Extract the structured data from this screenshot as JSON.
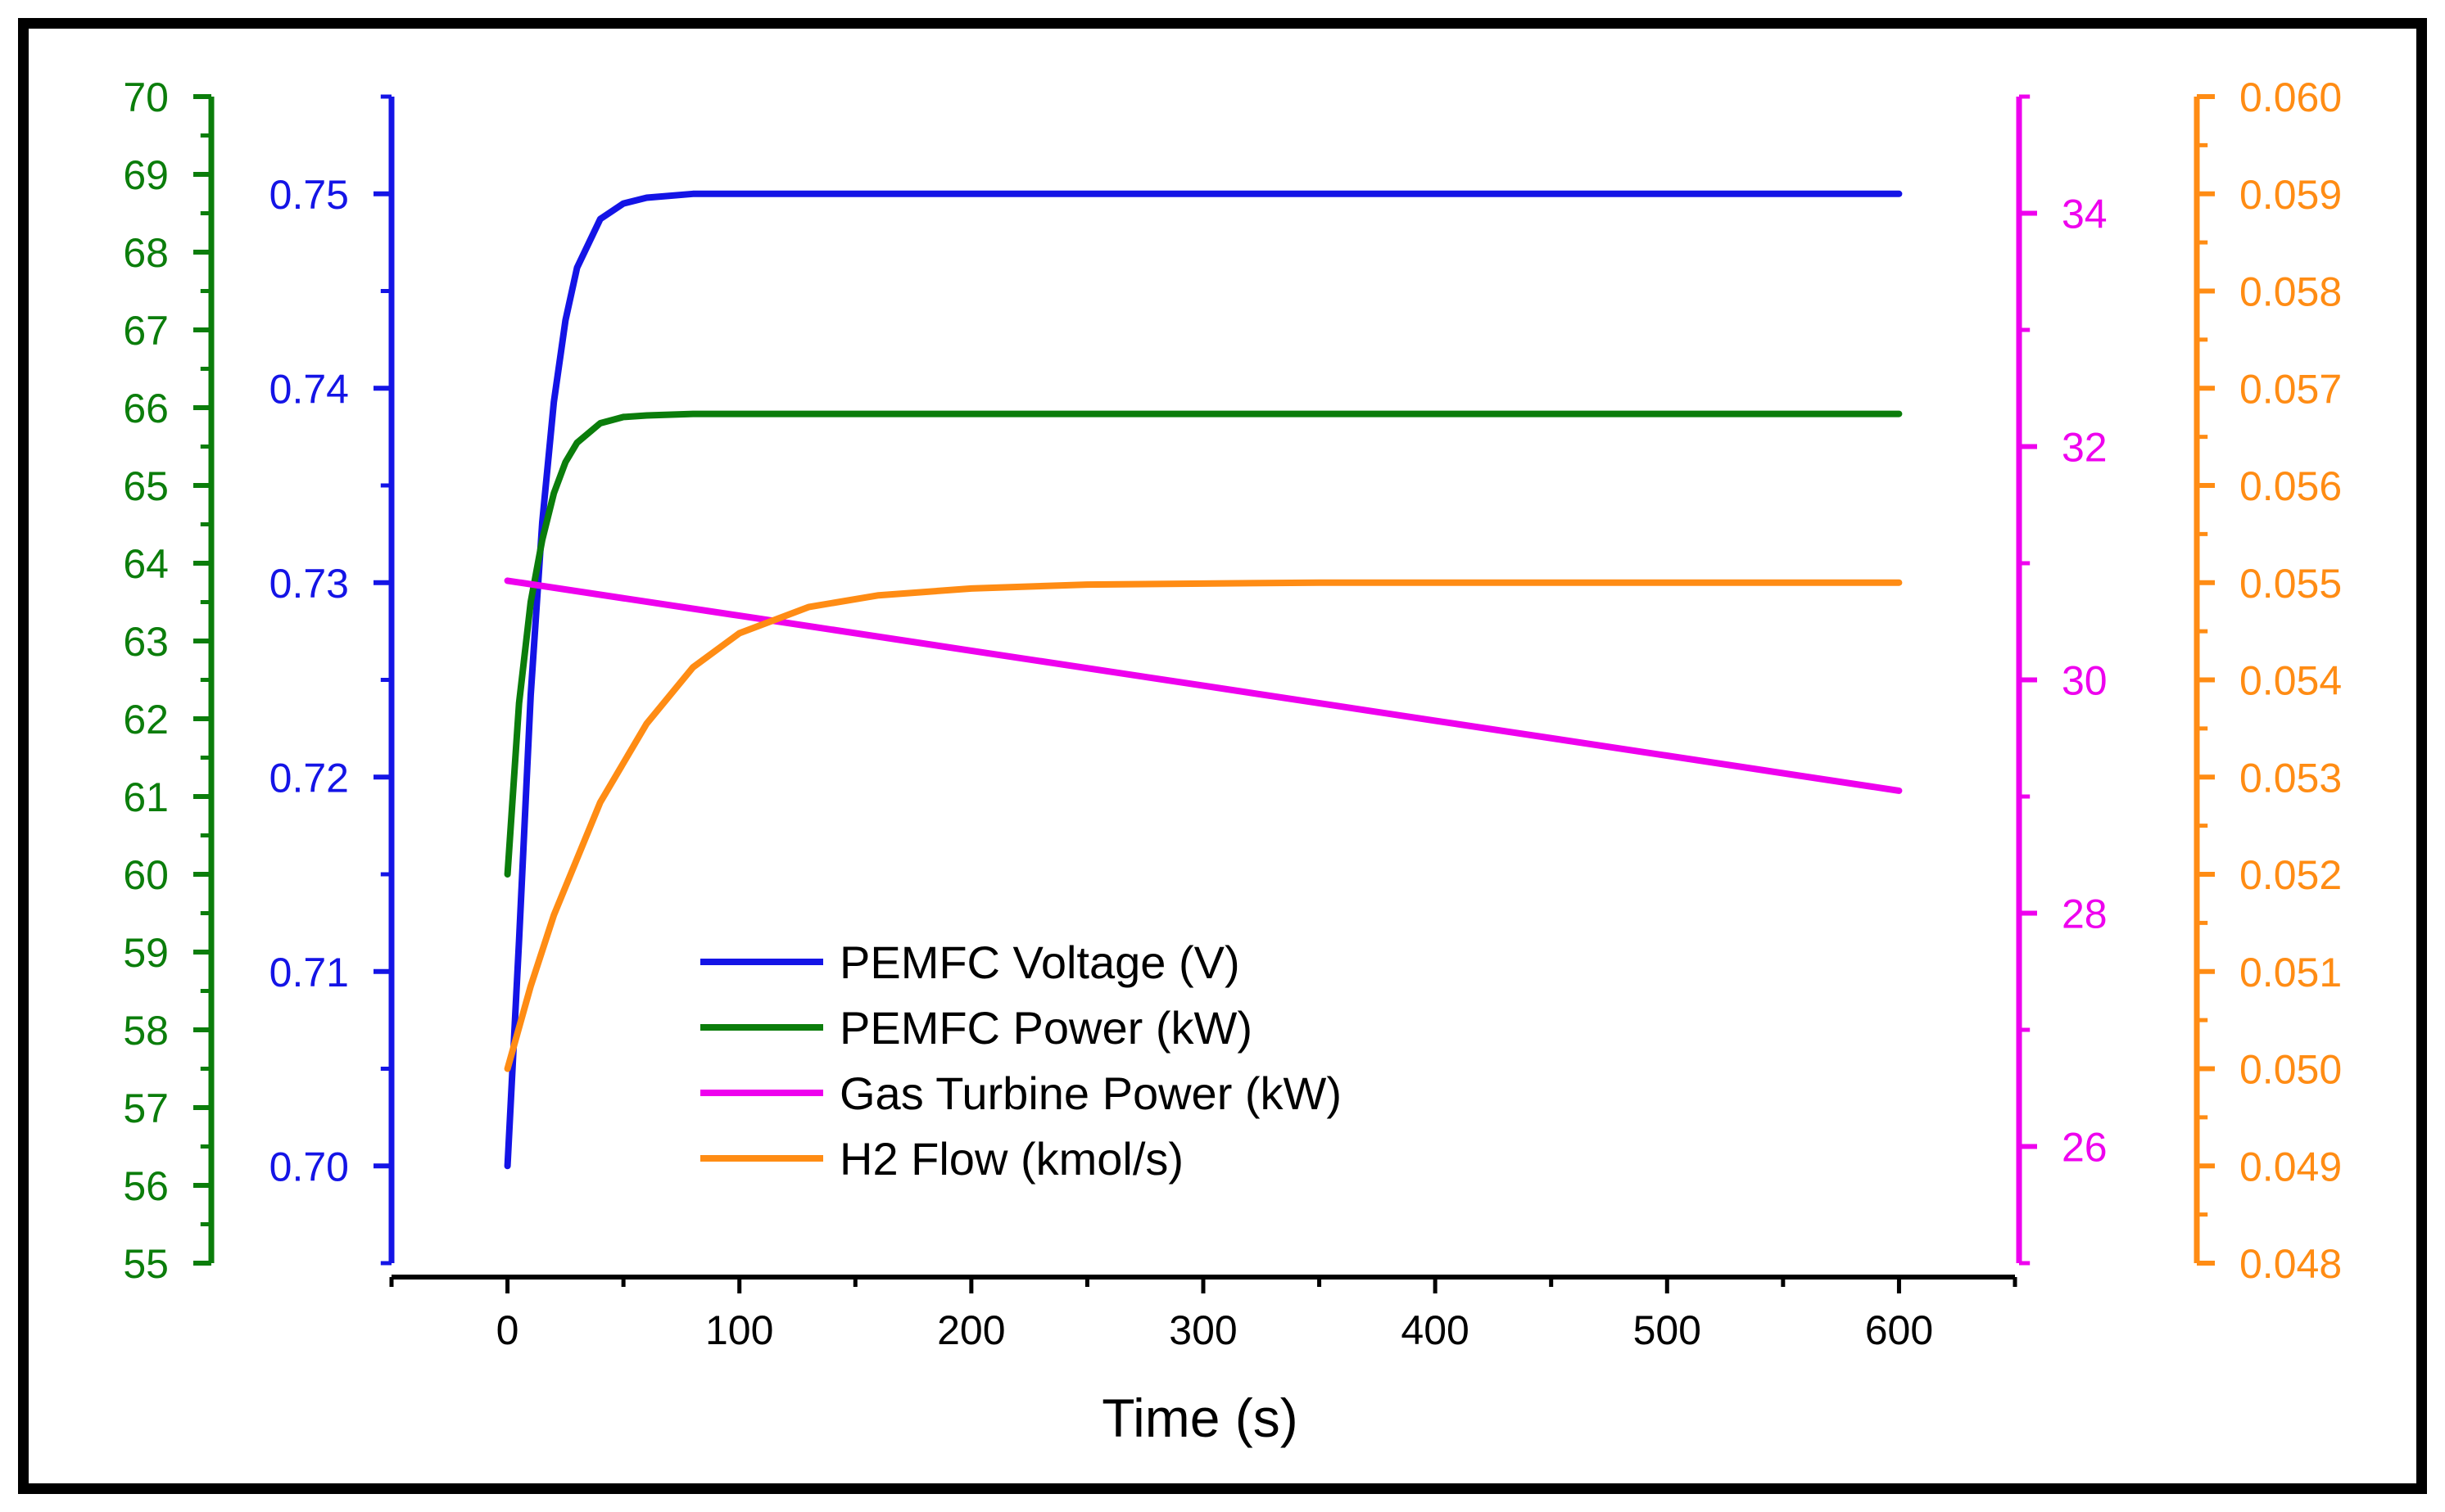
{
  "chart_data": {
    "type": "line",
    "title": "",
    "xlabel": "Time (s)",
    "xlim": [
      -50,
      650
    ],
    "x_ticks": [
      "0",
      "100",
      "200",
      "300",
      "400",
      "500",
      "600"
    ],
    "colors": {
      "voltage": "#1414e6",
      "power": "#0b7d0b",
      "gt": "#ee00ee",
      "h2": "#ff8c14",
      "axis": "#000000"
    },
    "axes": [
      {
        "id": "power",
        "side": "left-outer",
        "color": "#0b7d0b",
        "range": [
          55,
          70
        ],
        "ticks": [
          "55",
          "56",
          "57",
          "58",
          "59",
          "60",
          "61",
          "62",
          "63",
          "64",
          "65",
          "66",
          "67",
          "68",
          "69",
          "70"
        ]
      },
      {
        "id": "voltage",
        "side": "left-inner",
        "color": "#1414e6",
        "range": [
          0.695,
          0.755
        ],
        "ticks": [
          "0.70",
          "0.71",
          "0.72",
          "0.73",
          "0.74",
          "0.75"
        ]
      },
      {
        "id": "gt",
        "side": "right-inner",
        "color": "#ee00ee",
        "range": [
          25,
          35
        ],
        "ticks": [
          "26",
          "28",
          "30",
          "32",
          "34"
        ]
      },
      {
        "id": "h2",
        "side": "right-outer",
        "color": "#ff8c14",
        "range": [
          0.048,
          0.06
        ],
        "ticks": [
          "0.048",
          "0.049",
          "0.050",
          "0.051",
          "0.052",
          "0.053",
          "0.054",
          "0.055",
          "0.056",
          "0.057",
          "0.058",
          "0.059",
          "0.060"
        ]
      }
    ],
    "series": [
      {
        "name": "PEMFC Voltage (V)",
        "axis": "voltage",
        "color": "#1414e6",
        "x": [
          0,
          5,
          10,
          15,
          20,
          25,
          30,
          40,
          50,
          60,
          80,
          100,
          200,
          300,
          400,
          500,
          600
        ],
        "y": [
          0.7,
          0.7116,
          0.7242,
          0.7331,
          0.7393,
          0.7435,
          0.7462,
          0.7487,
          0.7495,
          0.7498,
          0.75,
          0.75,
          0.75,
          0.75,
          0.75,
          0.75,
          0.75
        ]
      },
      {
        "name": "PEMFC Power (kW)",
        "axis": "power",
        "color": "#0b7d0b",
        "x": [
          0,
          5,
          10,
          15,
          20,
          25,
          30,
          40,
          50,
          60,
          80,
          100,
          200,
          300,
          400,
          500,
          600
        ],
        "y": [
          60.0,
          62.2,
          63.5,
          64.3,
          64.9,
          65.3,
          65.55,
          65.8,
          65.88,
          65.9,
          65.92,
          65.92,
          65.92,
          65.92,
          65.92,
          65.92,
          65.92
        ]
      },
      {
        "name": "Gas Turbine Power (kW)",
        "axis": "gt",
        "color": "#ee00ee",
        "x": [
          0,
          100,
          200,
          300,
          400,
          500,
          600
        ],
        "y": [
          30.85,
          30.55,
          30.25,
          29.95,
          29.65,
          29.35,
          29.05
        ]
      },
      {
        "name": "H2 Flow (kmol/s)",
        "axis": "h2",
        "color": "#ff8c14",
        "x": [
          0,
          10,
          20,
          40,
          60,
          80,
          100,
          130,
          160,
          200,
          250,
          300,
          350,
          400,
          500,
          600
        ],
        "y": [
          0.05,
          0.05085,
          0.05158,
          0.05274,
          0.05355,
          0.05413,
          0.05448,
          0.05475,
          0.05487,
          0.05494,
          0.05498,
          0.05499,
          0.055,
          0.055,
          0.055,
          0.055
        ]
      }
    ],
    "legend": {
      "placement": "center-left",
      "entries": [
        "PEMFC Voltage (V)",
        "PEMFC Power (kW)",
        "Gas Turbine Power (kW)",
        "H2 Flow (kmol/s)"
      ]
    }
  }
}
